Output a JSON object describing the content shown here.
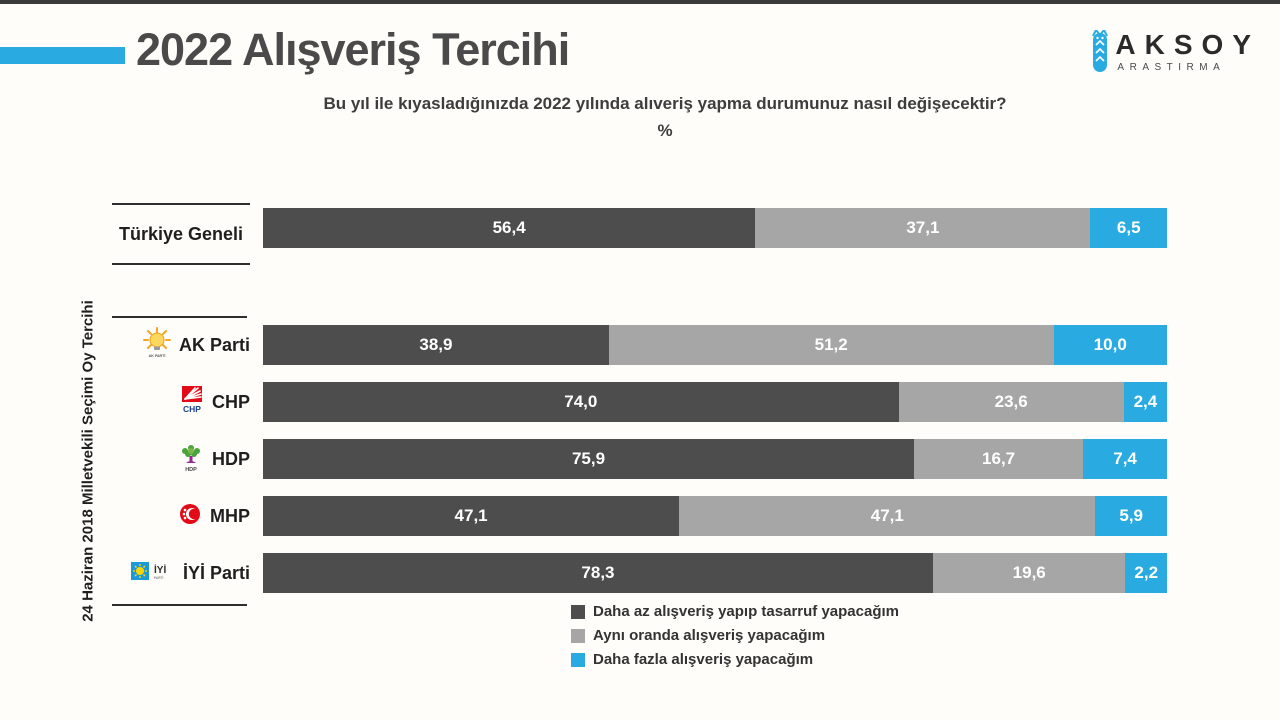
{
  "colors": {
    "accent_blue": "#29abe2",
    "series_dark": "#4d4d4d",
    "series_gray": "#a6a6a6",
    "series_blue": "#29abe2",
    "top_strip": "#3b3b3b"
  },
  "header": {
    "title": "2022 Alışveriş Tercihi",
    "subtitle": "Bu yıl ile kıyasladığınızda 2022 yılında alıveriş yapma durumunuz nasıl değişecektir?",
    "percent_label": "%"
  },
  "logo": {
    "brand": "AKSOY",
    "sub": "ARASTIRMA"
  },
  "chart_data": {
    "type": "bar",
    "stacked": true,
    "orientation": "horizontal",
    "title": "2022 Alışveriş Tercihi",
    "categories": [
      "Türkiye Geneli",
      "AK Parti",
      "CHP",
      "HDP",
      "MHP",
      "İYİ Parti"
    ],
    "category_icons": [
      null,
      "ak-parti-logo",
      "chp-logo",
      "hdp-logo",
      "mhp-logo",
      "iyi-parti-logo"
    ],
    "group_label": "24 Haziran 2018 Milletvekili Seçimi Oy Tercihi",
    "xlim": [
      0,
      100
    ],
    "grid": false,
    "legend_position": "bottom-center",
    "value_format": "comma-decimal",
    "series": [
      {
        "name": "Daha az alışveriş yapıp tasarruf yapacağım",
        "color": "#4d4d4d",
        "values": [
          56.4,
          38.9,
          74.0,
          75.9,
          47.1,
          78.3
        ],
        "display": [
          "56,4",
          "38,9",
          "74,0",
          "75,9",
          "47,1",
          "78,3"
        ]
      },
      {
        "name": "Aynı oranda alışveriş yapacağım",
        "color": "#a6a6a6",
        "values": [
          37.1,
          51.2,
          23.6,
          16.7,
          47.1,
          19.6
        ],
        "display": [
          "37,1",
          "51,2",
          "23,6",
          "16,7",
          "47,1",
          "19,6"
        ]
      },
      {
        "name": "Daha fazla alışveriş yapacağım",
        "color": "#29abe2",
        "values": [
          6.5,
          10.0,
          2.4,
          7.4,
          5.9,
          2.2
        ],
        "display": [
          "6,5",
          "10,0",
          "2,4",
          "7,4",
          "5,9",
          "2,2"
        ]
      }
    ]
  }
}
